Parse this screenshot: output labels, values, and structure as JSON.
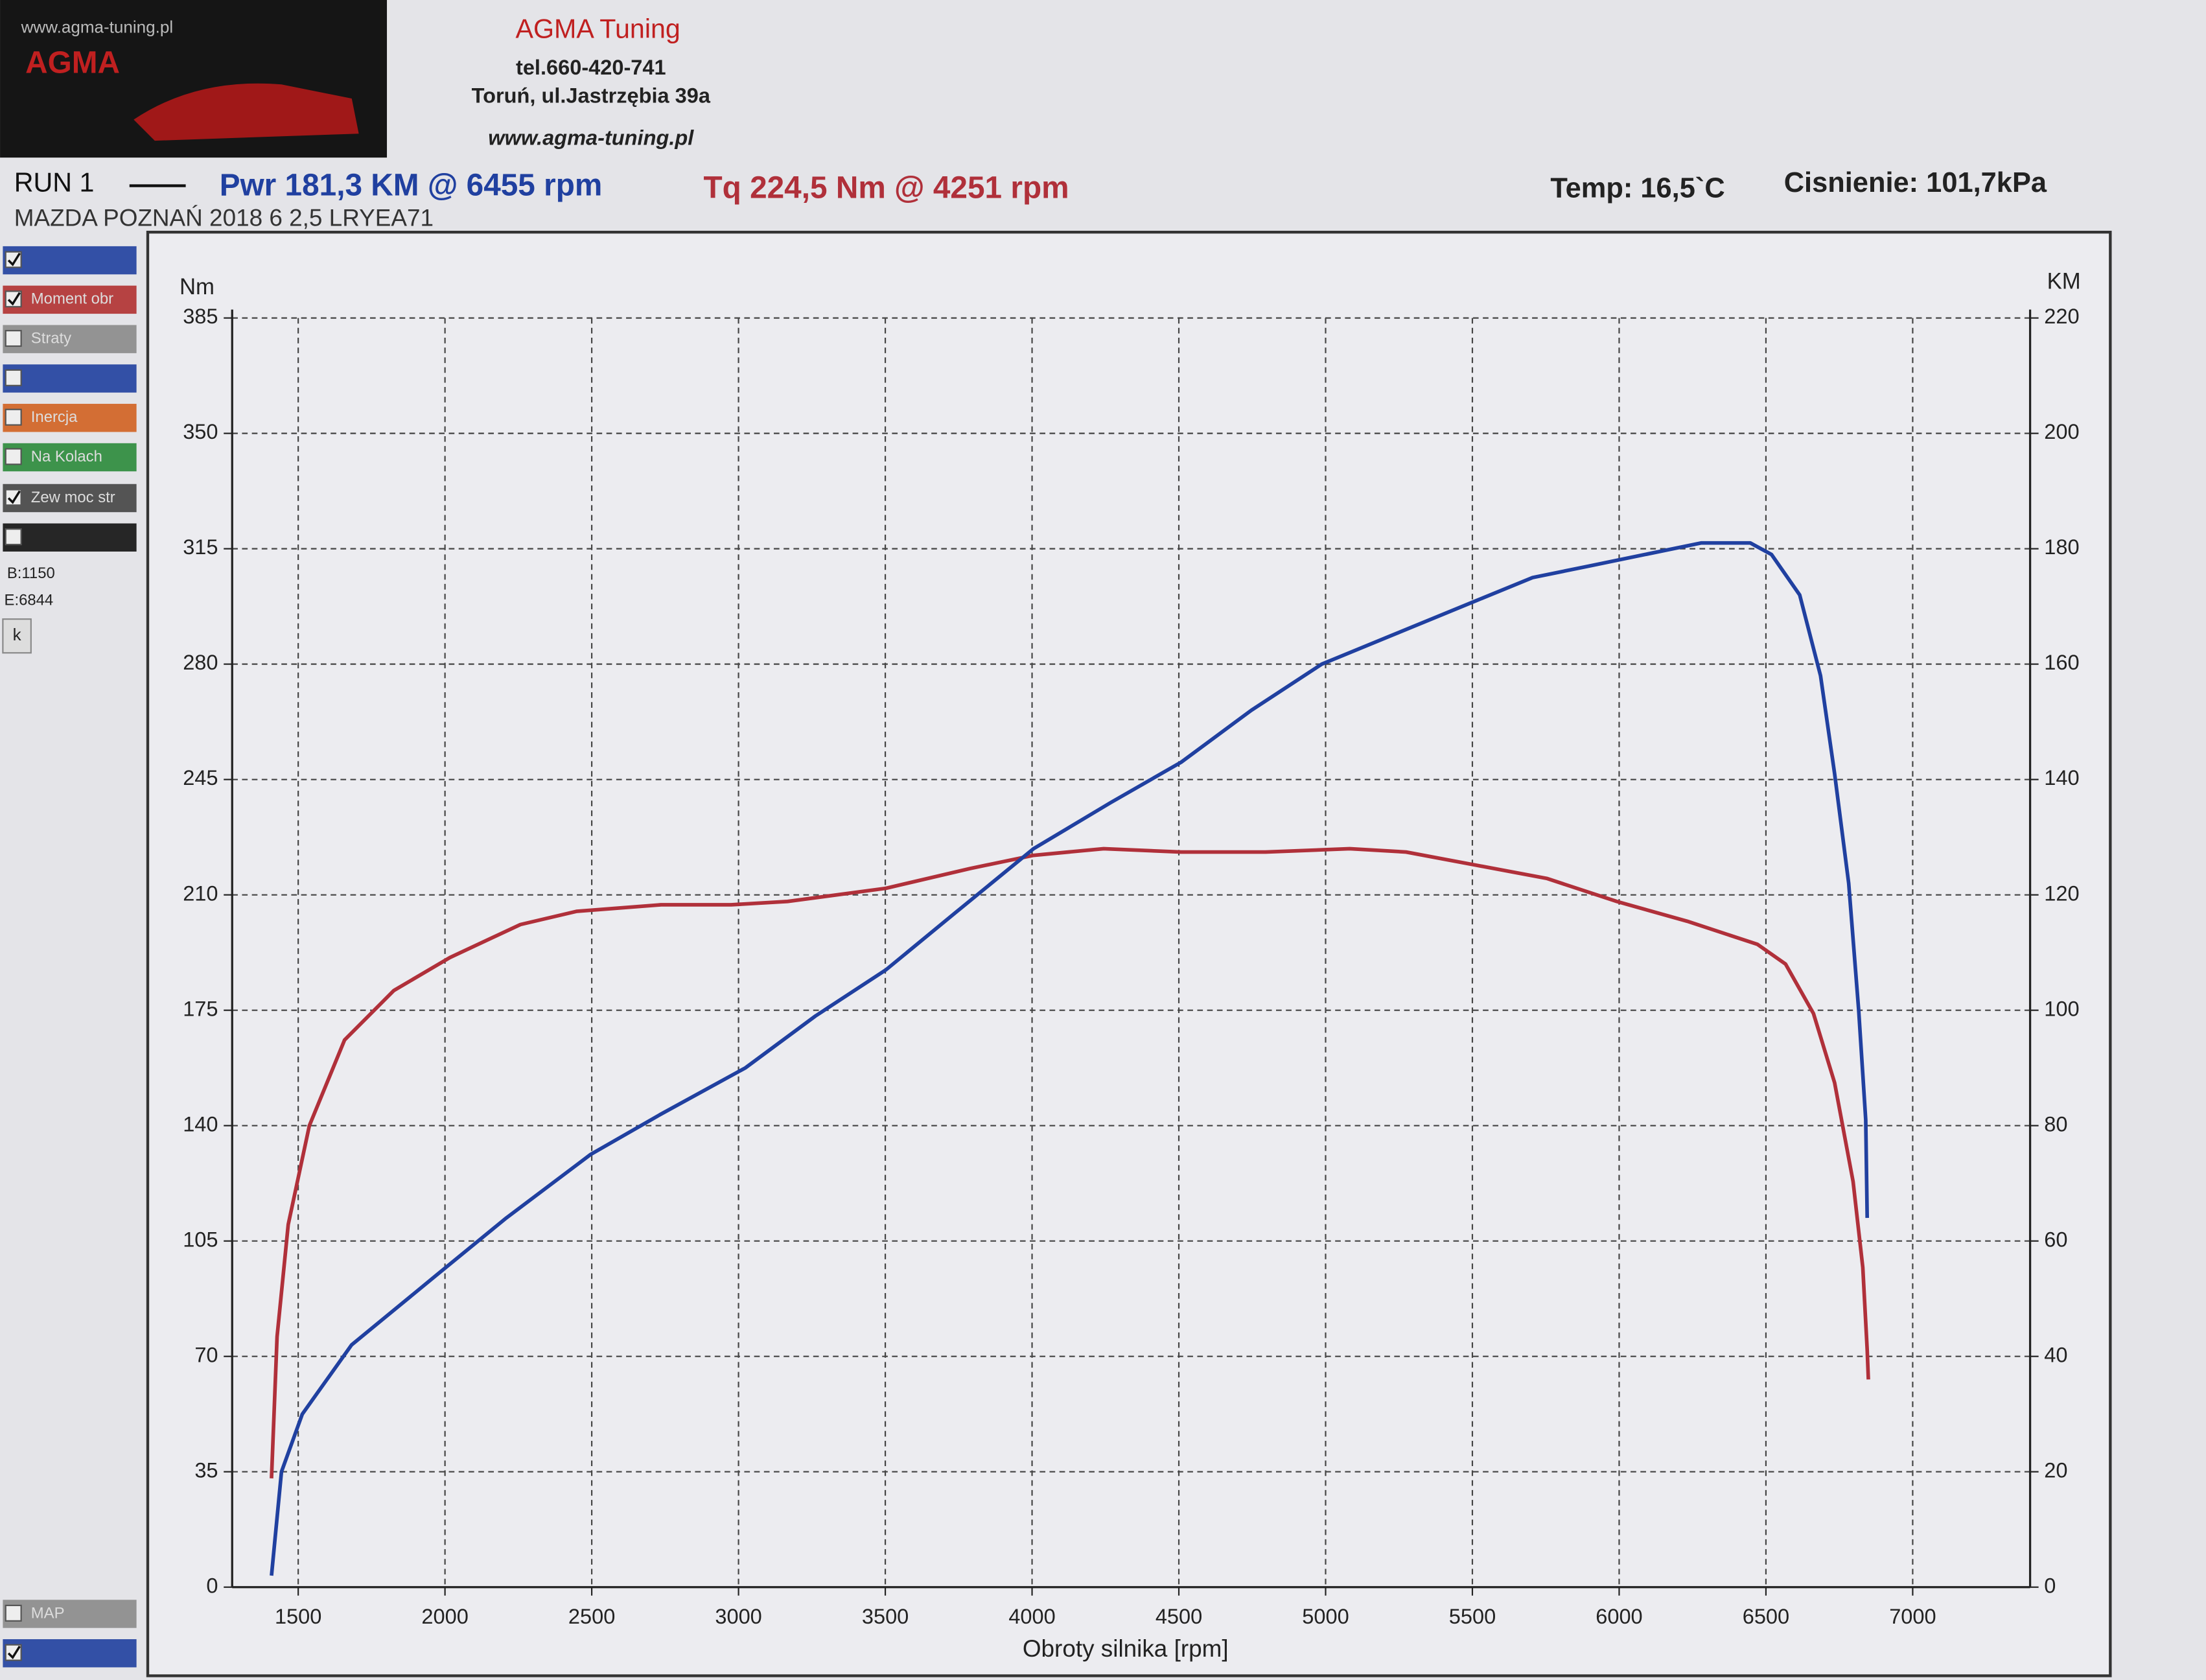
{
  "page": {
    "logo_url": "www.agma-tuning.pl",
    "logo_name": "AGMA",
    "company": "AGMA Tuning",
    "phone": "tel.660-420-741",
    "address": "Toruń, ul.Jastrzębia 39a",
    "website": "www.agma-tuning.pl",
    "run": "RUN 1",
    "pwr": "Pwr  181,3 KM @ 6455 rpm",
    "tq": "Tq 224,5 Nm @ 4251 rpm",
    "temp": "Temp: 16,5`C",
    "pressure": "Cisnienie: 101,7kPa",
    "vehicle": "MAZDA POZNAŃ 2018 6 2,5 LRYEA71",
    "begin": "B:1150",
    "end": "E:6844",
    "button": "k",
    "sidebar": [
      {
        "color": "#1f3f9f",
        "checked": true
      },
      {
        "color": "#b03030",
        "checked": true,
        "label": "Moment obr"
      },
      {
        "color": "#8a8a8a",
        "checked": false,
        "label": "Straty"
      },
      {
        "color": "#1f3f9f",
        "checked": false
      },
      {
        "color": "#d06020",
        "checked": false,
        "label": "Inercja"
      },
      {
        "color": "#2a8a3a",
        "checked": false,
        "label": "Na Kolach"
      },
      {
        "color": "#444444",
        "checked": true,
        "label": "Zew moc str"
      },
      {
        "color": "#111111",
        "checked": false
      }
    ],
    "sidebar_bottom": [
      {
        "color": "#8a8a8a",
        "checked": false,
        "label": "MAP"
      },
      {
        "color": "#1f3f9f",
        "checked": true
      }
    ]
  },
  "chart_data": {
    "type": "line",
    "x_label": "Obroty silnika [rpm]",
    "y_label": "Nm",
    "y2_label": "KM",
    "grid": true,
    "xlim": [
      1275,
      7400
    ],
    "xticks": [
      1500,
      2000,
      2500,
      3000,
      3500,
      4000,
      4500,
      5000,
      5500,
      6000,
      6500,
      7000
    ],
    "ylim": [
      0,
      385
    ],
    "yticks": [
      0,
      35,
      70,
      105,
      140,
      175,
      210,
      245,
      280,
      315,
      350,
      385
    ],
    "y2lim": [
      0,
      220
    ],
    "y2ticks": [
      0,
      20,
      40,
      60,
      80,
      100,
      120,
      140,
      160,
      180,
      200,
      220
    ],
    "series": [
      {
        "name": "Tq",
        "color": "#b0303a",
        "axis": "y",
        "x": [
          1409,
          1428,
          1466,
          1538,
          1658,
          1826,
          2017,
          2257,
          2448,
          2736,
          2975,
          3167,
          3502,
          3789,
          4005,
          4244,
          4508,
          4795,
          5082,
          5274,
          5513,
          5753,
          5992,
          6232,
          6471,
          6567,
          6662,
          6734,
          6797,
          6830,
          6845,
          6849
        ],
        "values": [
          33,
          76,
          110,
          140,
          166,
          181,
          191,
          201,
          205,
          207,
          207,
          208,
          212,
          218,
          222,
          224,
          223,
          223,
          224,
          223,
          219,
          215,
          208,
          202,
          195,
          189,
          174,
          153,
          123,
          97,
          72,
          63
        ]
      },
      {
        "name": "Pwr",
        "color": "#2040a0",
        "axis": "y2",
        "x": [
          1409,
          1443,
          1514,
          1682,
          1969,
          2209,
          2496,
          2736,
          3023,
          3262,
          3502,
          3741,
          4005,
          4268,
          4508,
          4747,
          4987,
          5226,
          5513,
          5705,
          5897,
          6088,
          6279,
          6447,
          6519,
          6615,
          6686,
          6734,
          6782,
          6816,
          6840,
          6845
        ],
        "values": [
          2,
          20,
          30,
          42,
          54,
          64,
          75,
          82,
          90,
          99,
          107,
          117,
          128,
          136,
          143,
          152,
          160,
          165,
          171,
          175,
          177,
          179,
          181,
          181,
          179,
          172,
          158,
          141,
          122,
          100,
          81,
          64
        ]
      }
    ]
  }
}
